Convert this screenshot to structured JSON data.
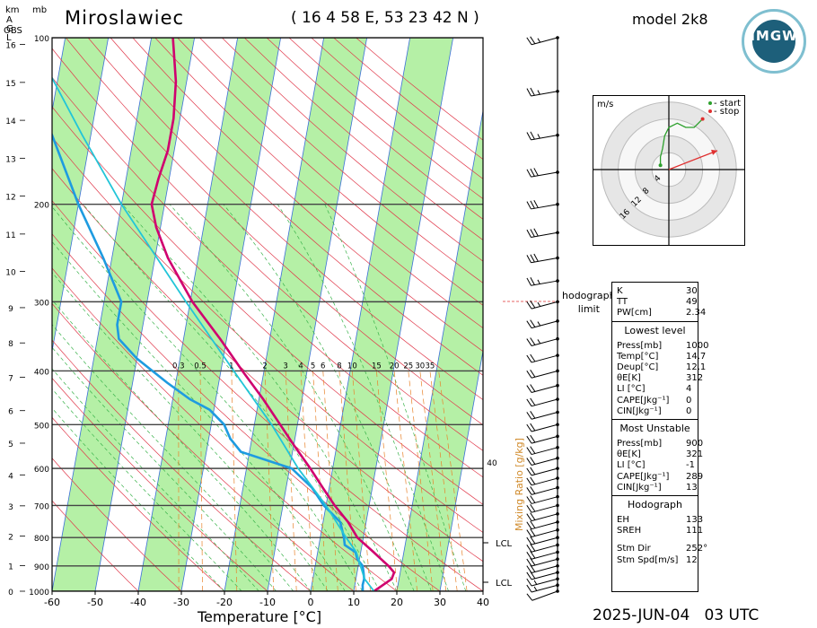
{
  "header": {
    "station": "Miroslawiec",
    "coordinates": "( 16 4 58 E, 53 23 42 N )",
    "model": "model 2k8",
    "datetime": "2025-JUN-04   03 UTC",
    "logo_text": "IMGW"
  },
  "axes": {
    "km_label": "km",
    "agl_label": "A\nG\nL",
    "obs_label": "OBS",
    "mb_label": "mb",
    "x_label": "Temperature [°C]",
    "hodograph_limit_label": "hodograph\nlimit",
    "mixing_ratio_label": "Mixing Ratio [g/kg]"
  },
  "chart_data": {
    "type": "line",
    "title": "Miroslawiec",
    "xlabel": "Temperature [°C]",
    "ylabel": "mb",
    "xlim": [
      -60,
      40
    ],
    "ylim": [
      1000,
      100
    ],
    "x_ticks": [
      -60,
      -50,
      -40,
      -30,
      -20,
      -10,
      0,
      10,
      20,
      30,
      40
    ],
    "pressure_ticks": [
      100,
      200,
      300,
      400,
      500,
      600,
      700,
      800,
      900,
      1000
    ],
    "height_km_ticks": [
      0,
      1,
      2,
      3,
      4,
      5,
      6,
      7,
      8,
      9,
      10,
      11,
      12,
      13,
      14,
      15,
      16
    ],
    "mixing_ratio_ticks": [
      "0.3",
      "0.5",
      "1",
      "2",
      "3",
      "4",
      "5",
      "6",
      "8",
      "10",
      "15",
      "20",
      "25",
      "30",
      "35"
    ],
    "mixing_ratio_extra_label": "40",
    "lcl_labels": [
      "LCL",
      "LCL"
    ],
    "series": [
      {
        "key": "temperature",
        "color": "#d0006f",
        "points": [
          [
            1000,
            14.7
          ],
          [
            975,
            16.5
          ],
          [
            950,
            18.3
          ],
          [
            925,
            18.6
          ],
          [
            900,
            17.0
          ],
          [
            875,
            15.0
          ],
          [
            850,
            13.0
          ],
          [
            800,
            8.6
          ],
          [
            750,
            5.8
          ],
          [
            700,
            2.0
          ],
          [
            650,
            -1.5
          ],
          [
            600,
            -5.2
          ],
          [
            550,
            -9.5
          ],
          [
            500,
            -14.0
          ],
          [
            450,
            -19.0
          ],
          [
            400,
            -25.0
          ],
          [
            350,
            -31.5
          ],
          [
            300,
            -39.5
          ],
          [
            250,
            -47.0
          ],
          [
            220,
            -51.0
          ],
          [
            200,
            -53.0
          ],
          [
            180,
            -52.5
          ],
          [
            160,
            -51.5
          ],
          [
            140,
            -51.5
          ],
          [
            120,
            -52.5
          ],
          [
            100,
            -55.0
          ]
        ]
      },
      {
        "key": "dewpoint",
        "color": "#1e9be0",
        "points": [
          [
            1000,
            12.1
          ],
          [
            975,
            11.8
          ],
          [
            950,
            11.9
          ],
          [
            925,
            11.5
          ],
          [
            900,
            11.0
          ],
          [
            875,
            9.5
          ],
          [
            850,
            8.8
          ],
          [
            825,
            6.0
          ],
          [
            800,
            5.5
          ],
          [
            750,
            4.0
          ],
          [
            700,
            -0.5
          ],
          [
            650,
            -4.0
          ],
          [
            600,
            -9.5
          ],
          [
            560,
            -22.0
          ],
          [
            530,
            -25.0
          ],
          [
            500,
            -27.0
          ],
          [
            470,
            -31.0
          ],
          [
            450,
            -36.0
          ],
          [
            420,
            -42.0
          ],
          [
            380,
            -50.0
          ],
          [
            350,
            -55.0
          ],
          [
            330,
            -56.0
          ],
          [
            300,
            -56.0
          ],
          [
            250,
            -62.0
          ],
          [
            200,
            -70.0
          ],
          [
            150,
            -79.0
          ],
          [
            130,
            -84.0
          ],
          [
            100,
            -91.0
          ]
        ]
      },
      {
        "key": "parcel",
        "color": "#22c5d8",
        "points": [
          [
            1000,
            14.7
          ],
          [
            950,
            12.0
          ],
          [
            900,
            10.5
          ],
          [
            850,
            9.0
          ],
          [
            800,
            6.0
          ],
          [
            700,
            0.0
          ],
          [
            600,
            -8.0
          ],
          [
            500,
            -16.0
          ],
          [
            400,
            -27.0
          ],
          [
            300,
            -41.0
          ],
          [
            200,
            -60.0
          ],
          [
            150,
            -72.0
          ],
          [
            100,
            -88.0
          ]
        ]
      }
    ],
    "wind_barbs": [
      {
        "p": 1000,
        "dir": 250,
        "spd": 10
      },
      {
        "p": 975,
        "dir": 255,
        "spd": 15
      },
      {
        "p": 950,
        "dir": 255,
        "spd": 15
      },
      {
        "p": 925,
        "dir": 255,
        "spd": 20
      },
      {
        "p": 900,
        "dir": 255,
        "spd": 20
      },
      {
        "p": 875,
        "dir": 255,
        "spd": 20
      },
      {
        "p": 850,
        "dir": 255,
        "spd": 20
      },
      {
        "p": 825,
        "dir": 255,
        "spd": 20
      },
      {
        "p": 800,
        "dir": 255,
        "spd": 20
      },
      {
        "p": 775,
        "dir": 255,
        "spd": 20
      },
      {
        "p": 750,
        "dir": 255,
        "spd": 20
      },
      {
        "p": 725,
        "dir": 255,
        "spd": 20
      },
      {
        "p": 700,
        "dir": 255,
        "spd": 20
      },
      {
        "p": 675,
        "dir": 255,
        "spd": 20
      },
      {
        "p": 650,
        "dir": 255,
        "spd": 20
      },
      {
        "p": 625,
        "dir": 255,
        "spd": 20
      },
      {
        "p": 600,
        "dir": 255,
        "spd": 20
      },
      {
        "p": 575,
        "dir": 255,
        "spd": 20
      },
      {
        "p": 550,
        "dir": 255,
        "spd": 20
      },
      {
        "p": 525,
        "dir": 255,
        "spd": 20
      },
      {
        "p": 500,
        "dir": 255,
        "spd": 20
      },
      {
        "p": 475,
        "dir": 255,
        "spd": 20
      },
      {
        "p": 450,
        "dir": 255,
        "spd": 20
      },
      {
        "p": 425,
        "dir": 255,
        "spd": 20
      },
      {
        "p": 400,
        "dir": 255,
        "spd": 20
      },
      {
        "p": 375,
        "dir": 255,
        "spd": 20
      },
      {
        "p": 350,
        "dir": 255,
        "spd": 25
      },
      {
        "p": 325,
        "dir": 255,
        "spd": 25
      },
      {
        "p": 300,
        "dir": 255,
        "spd": 25
      },
      {
        "p": 275,
        "dir": 260,
        "spd": 25
      },
      {
        "p": 250,
        "dir": 260,
        "spd": 30
      },
      {
        "p": 225,
        "dir": 260,
        "spd": 30
      },
      {
        "p": 200,
        "dir": 260,
        "spd": 30
      },
      {
        "p": 175,
        "dir": 260,
        "spd": 30
      },
      {
        "p": 150,
        "dir": 260,
        "spd": 25
      },
      {
        "p": 125,
        "dir": 260,
        "spd": 25
      },
      {
        "p": 100,
        "dir": 255,
        "spd": 25
      }
    ],
    "hodograph": {
      "units": "m/s",
      "ring_labels": [
        "4",
        "8",
        "12",
        "16"
      ],
      "legend_start": "- start",
      "legend_stop": "- stop",
      "points": [
        [
          -2,
          1
        ],
        [
          -2,
          3
        ],
        [
          -1.5,
          5
        ],
        [
          -1,
          8
        ],
        [
          0,
          10
        ],
        [
          2,
          11
        ],
        [
          4,
          10
        ],
        [
          6,
          10
        ],
        [
          7,
          11
        ],
        [
          8,
          12
        ]
      ],
      "storm_motion": [
        11.5,
        4.5
      ]
    }
  },
  "indices": {
    "top": [
      {
        "label": "K",
        "value": "30"
      },
      {
        "label": "TT",
        "value": "49"
      },
      {
        "label": "PW[cm]",
        "value": "2.34"
      }
    ],
    "lowest_title": "Lowest level",
    "lowest": [
      {
        "label": "Press[mb]",
        "value": "1000"
      },
      {
        "label": "Temp[°C]",
        "value": "14.7"
      },
      {
        "label": "Deup[°C]",
        "value": "12.1"
      },
      {
        "label": "θE[K]",
        "value": "312"
      },
      {
        "label": "LI [°C]",
        "value": "4"
      },
      {
        "label": "CAPE[Jkg⁻¹]",
        "value": "0"
      },
      {
        "label": "CIN[Jkg⁻¹]",
        "value": "0"
      }
    ],
    "unstable_title": "Most Unstable",
    "unstable": [
      {
        "label": "Press[mb]",
        "value": "900"
      },
      {
        "label": "θE[K]",
        "value": "321"
      },
      {
        "label": "LI [°C]",
        "value": "-1"
      },
      {
        "label": "CAPE[Jkg⁻¹]",
        "value": "289"
      },
      {
        "label": "CIN[Jkg⁻¹]",
        "value": "13"
      }
    ],
    "hodograph_title": "Hodograph",
    "hodo": [
      {
        "label": "EH",
        "value": "133"
      },
      {
        "label": "SREH",
        "value": "111"
      },
      {
        "label": "Stm Dir",
        "value": "252°"
      },
      {
        "label": "Stm Spd[m/s]",
        "value": "12"
      }
    ]
  }
}
